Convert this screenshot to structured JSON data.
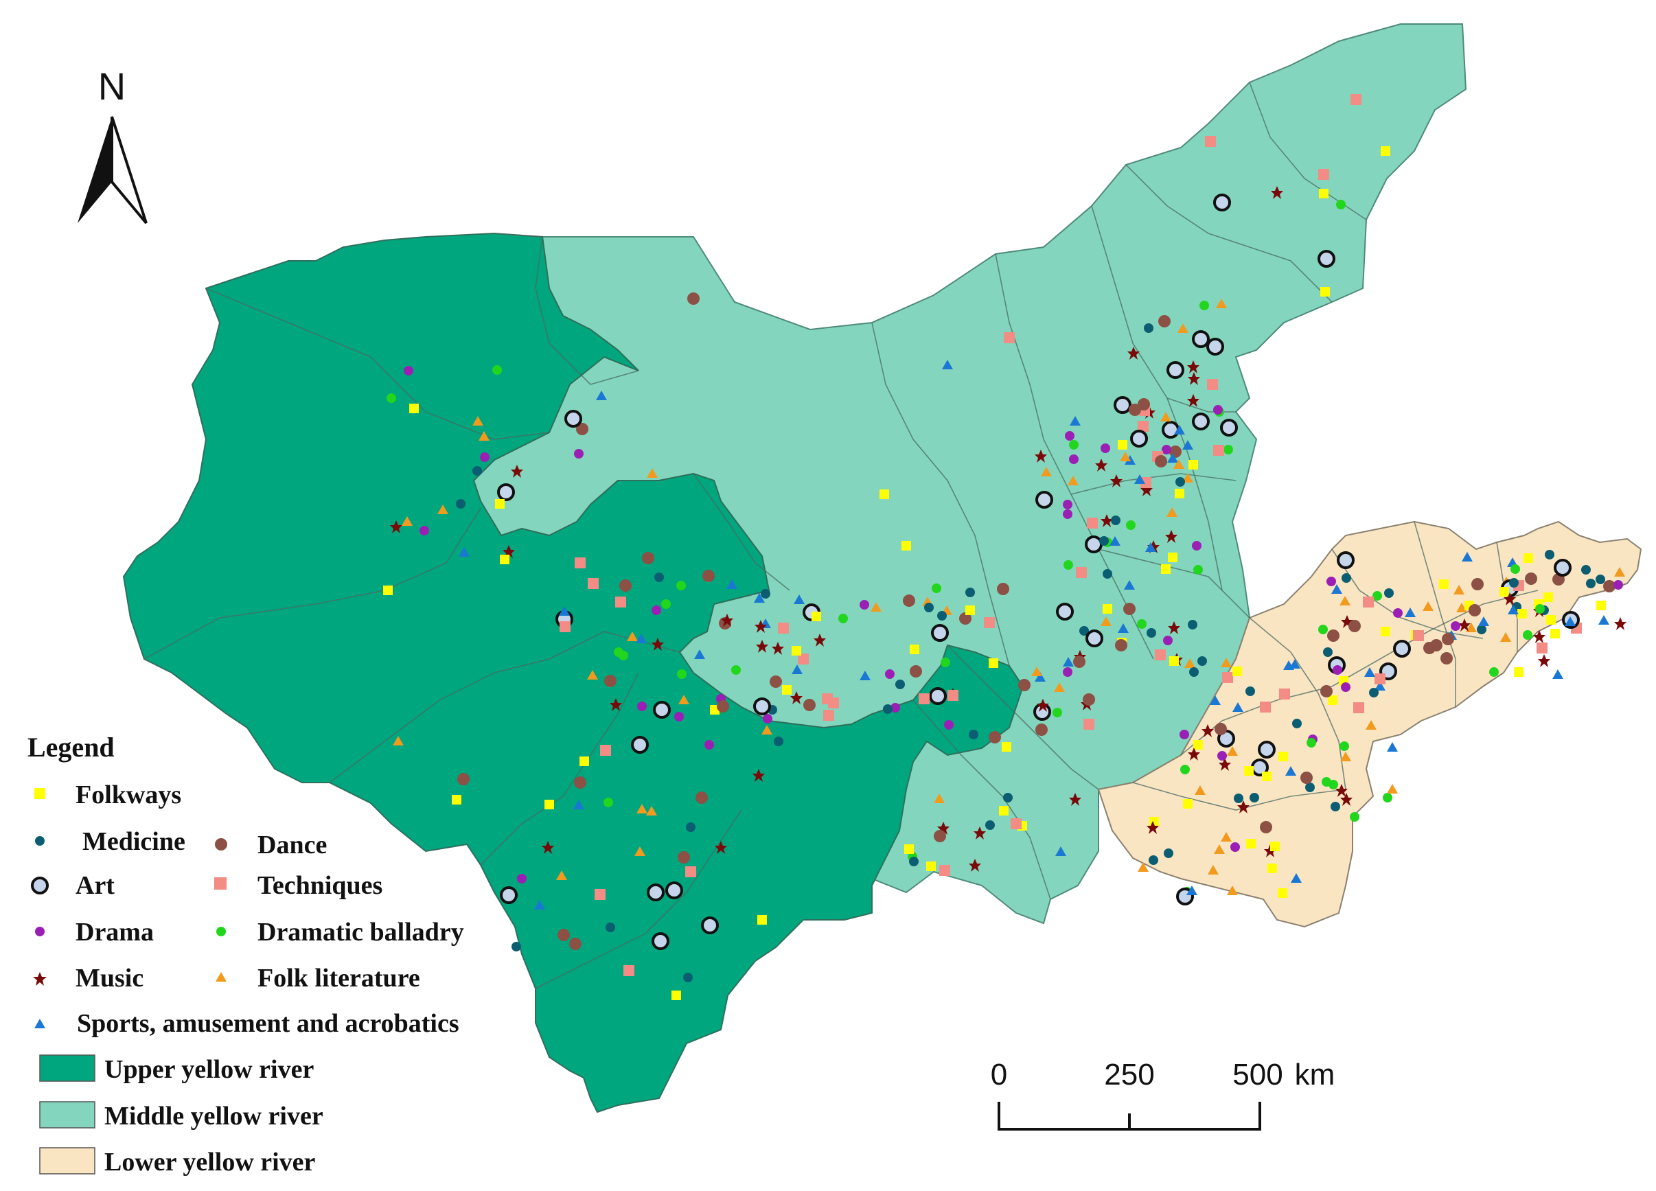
{
  "north_arrow": {
    "label": "N"
  },
  "legend": {
    "title": "Legend",
    "categories": [
      {
        "key": "folkways",
        "label": "Folkways",
        "color": "#ffff00",
        "shape": "square"
      },
      {
        "key": "medicine",
        "label": "Medicine",
        "color": "#0b5d72",
        "shape": "dot"
      },
      {
        "key": "art",
        "label": "Art",
        "color": "#c5d6ec",
        "shape": "ring"
      },
      {
        "key": "drama",
        "label": "Drama",
        "color": "#9b1fb5",
        "shape": "dot"
      },
      {
        "key": "music",
        "label": "Music",
        "color": "#7a0a0a",
        "shape": "star"
      },
      {
        "key": "sports",
        "label": "Sports, amusement and acrobatics",
        "color": "#1a78d4",
        "shape": "triangle"
      },
      {
        "key": "dance",
        "label": "Dance",
        "color": "#8c5044",
        "shape": "dot"
      },
      {
        "key": "techniques",
        "label": "Techniques",
        "color": "#f28c84",
        "shape": "square"
      },
      {
        "key": "dramatic_balladry",
        "label": "Dramatic balladry",
        "color": "#22d61e",
        "shape": "dot"
      },
      {
        "key": "folk_literature",
        "label": "Folk literature",
        "color": "#f29a1e",
        "shape": "triangle"
      }
    ],
    "regions": [
      {
        "key": "upper",
        "label": "Upper yellow river",
        "color": "#00a67e"
      },
      {
        "key": "middle",
        "label": "Middle yellow river",
        "color": "#83d6bd"
      },
      {
        "key": "lower",
        "label": "Lower yellow river",
        "color": "#fae5c3"
      }
    ]
  },
  "scale_bar": {
    "ticks": [
      "0",
      "250",
      "500"
    ],
    "unit": "km"
  }
}
